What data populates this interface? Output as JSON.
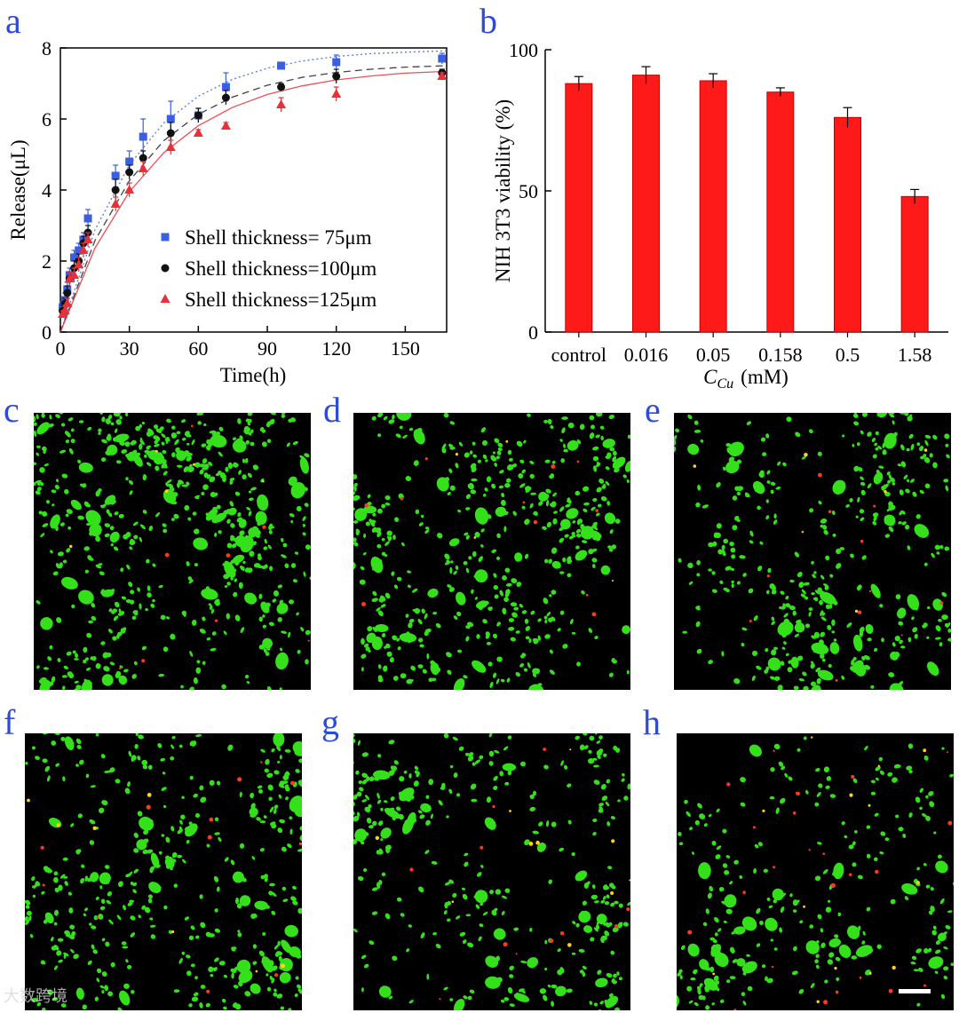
{
  "panels": {
    "a": "a",
    "b": "b",
    "c": "c",
    "d": "d",
    "e": "e",
    "f": "f",
    "g": "g",
    "h": "h"
  },
  "watermark": "大数跨境",
  "colors": {
    "letters": "#2e4bd8",
    "series_blue": "#3a5fe0",
    "series_black": "#111111",
    "series_red": "#e8303a",
    "bar_red": "#ff1a1a",
    "cell_green": "#33e01a",
    "cell_red": "#ff3a1a",
    "micrograph_background": "#000000",
    "scale_bar": "#ffffff"
  },
  "chart_data": [
    {
      "type": "scatter",
      "panel": "a",
      "title": "",
      "xlabel": "Time(h)",
      "ylabel": "Release(μL)",
      "xlim": [
        0,
        168
      ],
      "ylim": [
        0,
        8
      ],
      "xticks": [
        0,
        30,
        60,
        90,
        120,
        150
      ],
      "yticks": [
        0,
        2,
        4,
        6,
        8
      ],
      "grid": false,
      "fit_curves": true,
      "legend_position": "lower-right",
      "series": [
        {
          "name": "Shell thickness= 75μm",
          "color": "#3a5fe0",
          "marker": "square",
          "curve_style": "dotted",
          "x": [
            1,
            2,
            3,
            4,
            6,
            8,
            10,
            12,
            24,
            30,
            36,
            48,
            60,
            72,
            96,
            120,
            166
          ],
          "y": [
            0.7,
            0.9,
            1.2,
            1.6,
            2.1,
            2.3,
            2.6,
            3.2,
            4.4,
            4.8,
            5.5,
            6.0,
            6.1,
            6.9,
            7.5,
            7.6,
            7.7
          ],
          "err": [
            0.15,
            0.2,
            0.2,
            0.2,
            0.2,
            0.2,
            0.2,
            0.25,
            0.3,
            0.3,
            0.5,
            0.5,
            0.2,
            0.4,
            0.1,
            0.2,
            0.15
          ],
          "fit_y": [
            0,
            2.87,
            4.71,
            5.89,
            6.64,
            7.12,
            7.43,
            7.63,
            7.76,
            7.84,
            7.88,
            7.92
          ]
        },
        {
          "name": "Shell thickness=100μm",
          "color": "#111111",
          "marker": "circle",
          "curve_style": "dashed",
          "x": [
            1,
            2,
            3,
            4,
            6,
            8,
            10,
            12,
            24,
            30,
            36,
            48,
            60,
            72,
            96,
            120,
            166
          ],
          "y": [
            0.6,
            0.8,
            1.1,
            1.5,
            1.8,
            2.0,
            2.5,
            2.8,
            4.0,
            4.5,
            4.9,
            5.6,
            6.1,
            6.6,
            6.9,
            7.2,
            7.3
          ],
          "err": [
            0.15,
            0.15,
            0.2,
            0.2,
            0.2,
            0.2,
            0.2,
            0.2,
            0.3,
            0.2,
            0.2,
            0.3,
            0.2,
            0.2,
            0.1,
            0.2,
            0.1
          ],
          "fit_y": [
            0,
            2.57,
            4.26,
            5.39,
            6.13,
            6.62,
            6.95,
            7.17,
            7.31,
            7.4,
            7.46,
            7.5
          ]
        },
        {
          "name": "Shell thickness=125μm",
          "color": "#e8303a",
          "marker": "triangle",
          "curve_style": "solid",
          "x": [
            1,
            2,
            3,
            4,
            6,
            8,
            10,
            12,
            24,
            30,
            36,
            48,
            60,
            72,
            96,
            120,
            166
          ],
          "y": [
            0.5,
            0.6,
            0.8,
            1.5,
            1.6,
            1.9,
            2.3,
            2.6,
            3.6,
            4.0,
            4.6,
            5.2,
            5.6,
            5.8,
            6.4,
            6.7,
            7.2
          ],
          "err": [
            0.1,
            0.15,
            0.15,
            0.2,
            0.2,
            0.2,
            0.2,
            0.2,
            0.2,
            0.2,
            0.2,
            0.2,
            0.1,
            0.1,
            0.2,
            0.2,
            0.1
          ],
          "fit_y": [
            0,
            2.36,
            3.95,
            5.05,
            5.81,
            6.33,
            6.69,
            6.93,
            7.1,
            7.21,
            7.29,
            7.34
          ]
        }
      ],
      "fit_x": [
        0,
        15,
        30,
        45,
        60,
        75,
        90,
        105,
        120,
        135,
        150,
        168
      ]
    },
    {
      "type": "bar",
      "panel": "b",
      "title": "",
      "xlabel": "C",
      "xlabel_subscript": "Cu",
      "xlabel_unit": "(mM)",
      "ylabel": "NIH 3T3 viability (%)",
      "ylim": [
        0,
        100
      ],
      "yticks": [
        0,
        50,
        100
      ],
      "grid": false,
      "color": "#ff1a1a",
      "categories": [
        "control",
        "0.016",
        "0.05",
        "0.158",
        "0.5",
        "1.58"
      ],
      "values": [
        88,
        91,
        89,
        85,
        76,
        48
      ],
      "err": [
        2.5,
        3,
        2.5,
        1.5,
        3.5,
        2.5
      ]
    }
  ],
  "micrographs": [
    {
      "panel": "c",
      "green_density": 1.0,
      "red_density": 0.05,
      "scale_bar": false
    },
    {
      "panel": "d",
      "green_density": 0.8,
      "red_density": 0.08,
      "scale_bar": false
    },
    {
      "panel": "e",
      "green_density": 0.6,
      "red_density": 0.12,
      "scale_bar": false
    },
    {
      "panel": "f",
      "green_density": 0.65,
      "red_density": 0.15,
      "scale_bar": false
    },
    {
      "panel": "g",
      "green_density": 0.5,
      "red_density": 0.18,
      "scale_bar": false
    },
    {
      "panel": "h",
      "green_density": 0.3,
      "red_density": 0.45,
      "scale_bar": true
    }
  ]
}
